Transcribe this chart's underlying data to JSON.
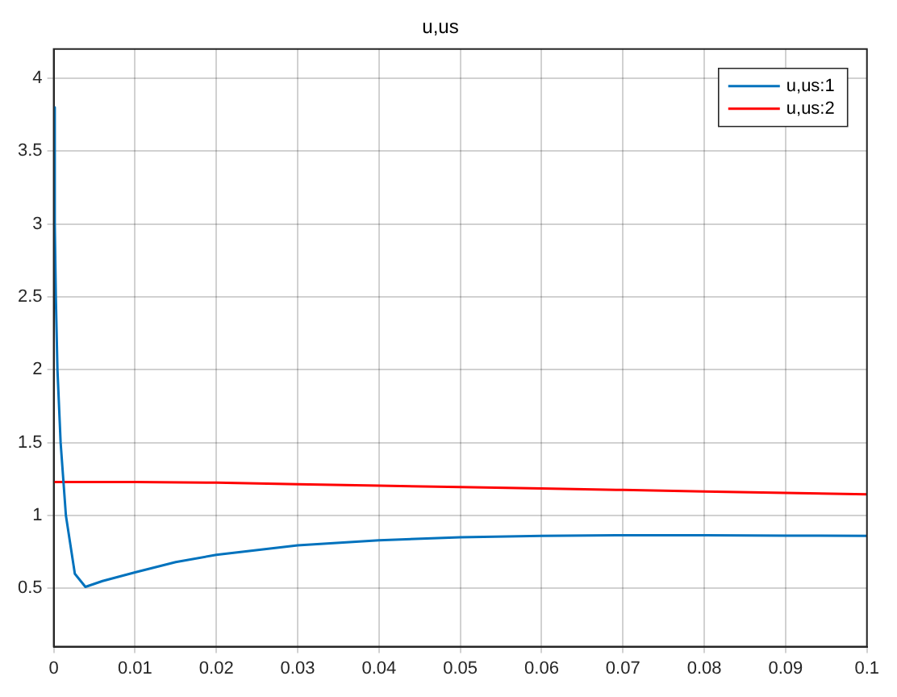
{
  "chart_data": {
    "type": "line",
    "title": "u,us",
    "series": [
      {
        "name": "u,us:1",
        "color": "#0072bd",
        "x": [
          0,
          0.00013,
          0.00026,
          0.00046,
          0.00085,
          0.0015,
          0.0026,
          0.0039,
          0.006,
          0.01,
          0.015,
          0.02,
          0.03,
          0.04,
          0.05,
          0.06,
          0.07,
          0.08,
          0.09,
          0.1
        ],
        "values": [
          3.8,
          3,
          2.5,
          2,
          1.5,
          1,
          0.6,
          0.51,
          0.55,
          0.61,
          0.68,
          0.73,
          0.795,
          0.83,
          0.85,
          0.86,
          0.865,
          0.865,
          0.862,
          0.86
        ]
      },
      {
        "name": "u,us:2",
        "color": "#ff0000",
        "x": [
          0,
          0.01,
          0.02,
          0.03,
          0.04,
          0.05,
          0.06,
          0.07,
          0.08,
          0.09,
          0.1
        ],
        "values": [
          1.23,
          1.23,
          1.225,
          1.215,
          1.205,
          1.195,
          1.185,
          1.175,
          1.165,
          1.155,
          1.145
        ]
      }
    ],
    "xlim": [
      0,
      0.1
    ],
    "xticks": [
      0,
      0.01,
      0.02,
      0.03,
      0.04,
      0.05,
      0.06,
      0.07,
      0.08,
      0.09,
      0.1
    ],
    "ylim": [
      0.1,
      4.2
    ],
    "yticks": [
      0.5,
      1,
      1.5,
      2,
      2.5,
      3,
      3.5,
      4
    ],
    "grid": true,
    "legend": "top right",
    "marker": "none",
    "line_style": "solid"
  }
}
